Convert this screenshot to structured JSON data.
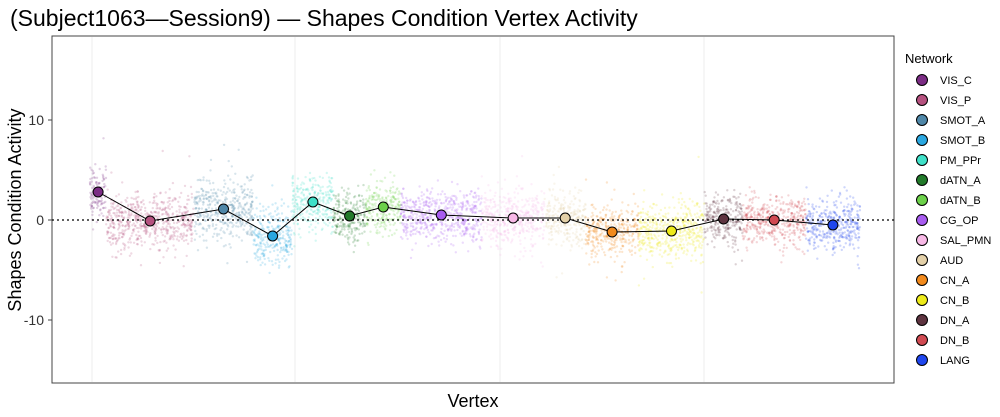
{
  "chart_data": {
    "type": "scatter",
    "title": "(Subject1063—Session9) — Shapes Condition Vertex Activity",
    "xlabel": "Vertex",
    "ylabel": "Shapes Condition Activity",
    "ylim": [
      -16,
      18
    ],
    "y_ticks": [
      10,
      0,
      -10
    ],
    "y_tick_labels": [
      "10",
      "0",
      "-10"
    ],
    "reference_line_y": 0,
    "grid": true,
    "legend": {
      "title": "Network",
      "position": "right"
    },
    "networks": [
      {
        "name": "VIS_C",
        "color": "#7B2C84",
        "mean": 2.8,
        "spread": 2.2
      },
      {
        "name": "VIS_P",
        "color": "#B5517F",
        "mean": -0.1,
        "spread": 2.6
      },
      {
        "name": "SMOT_A",
        "color": "#4F87A8",
        "mean": 1.1,
        "spread": 2.8
      },
      {
        "name": "SMOT_B",
        "color": "#2AA7E0",
        "mean": -1.6,
        "spread": 2.6
      },
      {
        "name": "PM_PPr",
        "color": "#3FE0C8",
        "mean": 1.8,
        "spread": 2.4
      },
      {
        "name": "dATN_A",
        "color": "#227A2A",
        "mean": 0.4,
        "spread": 2.2
      },
      {
        "name": "dATN_B",
        "color": "#6CD14A",
        "mean": 1.3,
        "spread": 2.4
      },
      {
        "name": "CG_OP",
        "color": "#A85CF0",
        "mean": 0.5,
        "spread": 2.4
      },
      {
        "name": "SAL_PMN",
        "color": "#F7B8E6",
        "mean": 0.2,
        "spread": 2.4
      },
      {
        "name": "AUD",
        "color": "#E3D0A8",
        "mean": 0.2,
        "spread": 2.2
      },
      {
        "name": "CN_A",
        "color": "#F28A1C",
        "mean": -1.2,
        "spread": 2.2
      },
      {
        "name": "CN_B",
        "color": "#EDEA1A",
        "mean": -1.1,
        "spread": 2.4
      },
      {
        "name": "DN_A",
        "color": "#5E3440",
        "mean": 0.1,
        "spread": 2.4
      },
      {
        "name": "DN_B",
        "color": "#D04A52",
        "mean": 0.0,
        "spread": 2.2
      },
      {
        "name": "LANG",
        "color": "#1F46EE",
        "mean": -0.5,
        "spread": 2.4
      }
    ]
  }
}
